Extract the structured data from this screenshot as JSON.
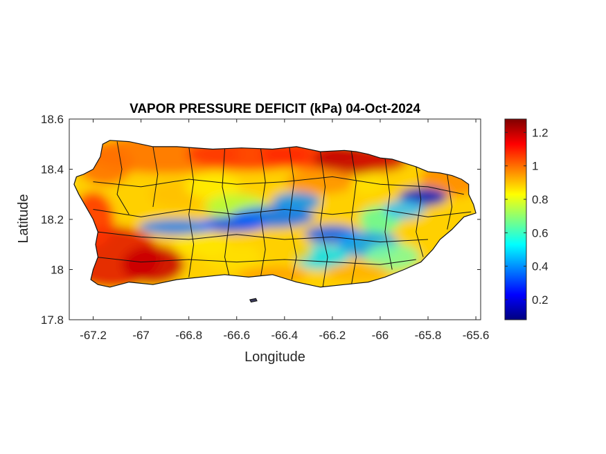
{
  "chart_data": {
    "type": "heatmap",
    "title": "VAPOR PRESSURE DEFICIT (kPa) 04-Oct-2024",
    "xlabel": "Longitude",
    "ylabel": "Latitude",
    "xlim": [
      -67.3,
      -65.58
    ],
    "ylim": [
      17.8,
      18.6
    ],
    "x_ticks": [
      -67.2,
      -67,
      -66.8,
      -66.6,
      -66.4,
      -66.2,
      -66,
      -65.8,
      -65.6
    ],
    "x_tick_labels": [
      "-67.2",
      "-67",
      "-66.8",
      "-66.6",
      "-66.4",
      "-66.2",
      "-66",
      "-65.8",
      "-65.6"
    ],
    "y_ticks": [
      17.8,
      18,
      18.2,
      18.4,
      18.6
    ],
    "y_tick_labels": [
      "17.8",
      "18",
      "18.2",
      "18.4",
      "18.6"
    ],
    "colorbar": {
      "label": "",
      "range": [
        0.08,
        1.28
      ],
      "ticks": [
        0.2,
        0.4,
        0.6,
        0.8,
        1,
        1.2
      ],
      "tick_labels": [
        "0.2",
        "0.4",
        "0.6",
        "0.8",
        "1",
        "1.2"
      ],
      "colormap": "jet"
    },
    "grid": false,
    "legend": "colorbar-right"
  }
}
